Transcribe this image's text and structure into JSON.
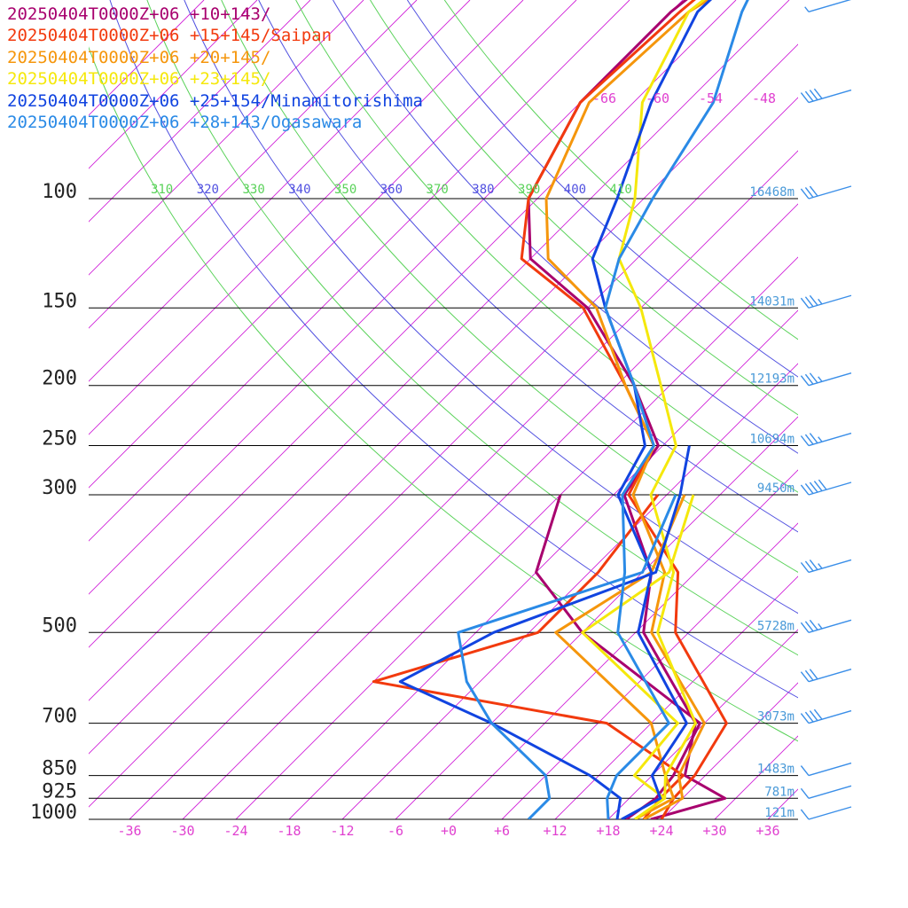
{
  "chart_data": {
    "type": "line",
    "title": "",
    "legend": [
      {
        "label": "20250404T0000Z+06 +10+143/",
        "color": "#a8006e"
      },
      {
        "label": "20250404T0000Z+06 +15+145/Saipan",
        "color": "#f23a0e"
      },
      {
        "label": "20250404T0000Z+06 +20+145/",
        "color": "#f5960c"
      },
      {
        "label": "20250404T0000Z+06 +23+145/",
        "color": "#f5e80c"
      },
      {
        "label": "20250404T0000Z+06 +25+154/Minamitorishima",
        "color": "#1144e0"
      },
      {
        "label": "20250404T0000Z+06 +28+143/Ogasawara",
        "color": "#2a8ae6"
      }
    ],
    "pressure_levels": [
      {
        "p": 100,
        "label": "100",
        "height": "16468m"
      },
      {
        "p": 150,
        "label": "150",
        "height": "14031m"
      },
      {
        "p": 200,
        "label": "200",
        "height": "12193m"
      },
      {
        "p": 250,
        "label": "250",
        "height": "10694m"
      },
      {
        "p": 300,
        "label": "300",
        "height": "9450m"
      },
      {
        "p": 500,
        "label": "500",
        "height": "5728m"
      },
      {
        "p": 700,
        "label": "700",
        "height": "3073m"
      },
      {
        "p": 850,
        "label": "850",
        "height": "1483m"
      },
      {
        "p": 925,
        "label": "925",
        "height": "781m"
      },
      {
        "p": 1000,
        "label": "1000",
        "height": "121m"
      }
    ],
    "x_tick_labels": [
      "-36",
      "-30",
      "-24",
      "-18",
      "-12",
      "-6",
      "+0",
      "+6",
      "+12",
      "+18",
      "+24",
      "+30",
      "+36"
    ],
    "x_tick_values": [
      -36,
      -30,
      -24,
      -18,
      -12,
      -6,
      0,
      6,
      12,
      18,
      24,
      30,
      36
    ],
    "isotherm_top_labels": [
      "-66",
      "-60",
      "-54",
      "-48"
    ],
    "isotherm_top_values": [
      -66,
      -60,
      -54,
      -48
    ],
    "theta_labels": [
      "310",
      "320",
      "330",
      "340",
      "350",
      "360",
      "370",
      "380",
      "390",
      "400",
      "410"
    ],
    "theta_values": [
      310,
      320,
      330,
      340,
      350,
      360,
      370,
      380,
      390,
      400,
      410
    ],
    "colors": {
      "level_label": "#222222",
      "height_label": "#4a9ad8",
      "temp_axis": "#e040d0",
      "isotherm": "#d020d8",
      "theta_green": "#5ad25a",
      "theta_blue": "#5050e0",
      "isobar": "#000000",
      "wind_barb": "#3a8ee8"
    },
    "series": [
      {
        "name": "20250404T0000Z+06 +10+143/",
        "color": "#a8006e",
        "temperature": [
          [
            1000,
            22.8
          ],
          [
            925,
            28.8
          ],
          [
            850,
            21.7
          ],
          [
            700,
            17
          ],
          [
            500,
            0.9
          ],
          [
            400,
            -5
          ],
          [
            300,
            -16.8
          ],
          [
            250,
            -18.5
          ],
          [
            200,
            -28
          ],
          [
            150,
            -42
          ],
          [
            125,
            -54
          ],
          [
            100,
            -61
          ],
          [
            70,
            -66
          ],
          [
            50,
            -66
          ],
          [
            30,
            -62
          ]
        ],
        "dewpoint": [
          [
            1000,
            20
          ],
          [
            925,
            21
          ],
          [
            850,
            20.4
          ],
          [
            700,
            17.5
          ],
          [
            500,
            -6
          ],
          [
            400,
            -18
          ],
          [
            300,
            -24
          ]
        ]
      },
      {
        "name": "20250404T0000Z+06 +15+145/Saipan",
        "color": "#f23a0e",
        "temperature": [
          [
            1000,
            24
          ],
          [
            925,
            23
          ],
          [
            850,
            22.8
          ],
          [
            700,
            20.5
          ],
          [
            500,
            4.5
          ],
          [
            400,
            -2
          ],
          [
            300,
            -16.3
          ],
          [
            250,
            -19
          ],
          [
            200,
            -29
          ],
          [
            150,
            -42.5
          ],
          [
            125,
            -55
          ],
          [
            100,
            -61
          ],
          [
            70,
            -66
          ],
          [
            50,
            -65
          ],
          [
            30,
            -62
          ]
        ],
        "dewpoint": [
          [
            1000,
            22
          ],
          [
            925,
            21.5
          ],
          [
            850,
            21.5
          ],
          [
            700,
            7
          ],
          [
            600,
            -24
          ],
          [
            500,
            -11
          ],
          [
            400,
            -11
          ],
          [
            300,
            -13
          ]
        ]
      },
      {
        "name": "20250404T0000Z+06 +20+145/",
        "color": "#f5960c",
        "temperature": [
          [
            1000,
            22
          ],
          [
            925,
            24
          ],
          [
            850,
            21
          ],
          [
            700,
            18
          ],
          [
            500,
            1.8
          ],
          [
            400,
            -3.5
          ],
          [
            300,
            -15.8
          ],
          [
            250,
            -19
          ],
          [
            200,
            -29
          ],
          [
            150,
            -41
          ],
          [
            125,
            -52
          ],
          [
            100,
            -59
          ],
          [
            70,
            -65
          ],
          [
            50,
            -64
          ],
          [
            30,
            -54
          ]
        ],
        "dewpoint": [
          [
            1000,
            21
          ],
          [
            925,
            23
          ],
          [
            850,
            19.5
          ],
          [
            700,
            12
          ],
          [
            500,
            -9
          ],
          [
            400,
            -5
          ],
          [
            300,
            -10
          ]
        ]
      },
      {
        "name": "20250404T0000Z+06 +23+145/",
        "color": "#f5e80c",
        "temperature": [
          [
            1000,
            21
          ],
          [
            925,
            22
          ],
          [
            850,
            19.5
          ],
          [
            700,
            17
          ],
          [
            500,
            2.5
          ],
          [
            400,
            -2.5
          ],
          [
            300,
            -13.8
          ],
          [
            250,
            -16.5
          ],
          [
            200,
            -25
          ],
          [
            150,
            -36
          ],
          [
            125,
            -44
          ],
          [
            100,
            -49
          ],
          [
            70,
            -59
          ],
          [
            50,
            -64
          ],
          [
            30,
            -60
          ]
        ],
        "dewpoint": [
          [
            1000,
            21
          ],
          [
            925,
            22
          ],
          [
            850,
            16
          ],
          [
            700,
            15
          ],
          [
            500,
            -6
          ],
          [
            400,
            -3
          ],
          [
            300,
            -9
          ]
        ]
      },
      {
        "name": "20250404T0000Z+06 +25+154/Minamitorishima",
        "color": "#1144e0",
        "temperature": [
          [
            1000,
            19.5
          ],
          [
            925,
            21.5
          ],
          [
            850,
            18
          ],
          [
            700,
            16
          ],
          [
            500,
            0.3
          ],
          [
            400,
            -5
          ],
          [
            300,
            -17.5
          ],
          [
            250,
            -20
          ],
          [
            200,
            -28
          ],
          [
            150,
            -40
          ],
          [
            125,
            -47
          ],
          [
            100,
            -51
          ],
          [
            70,
            -58
          ],
          [
            50,
            -63
          ],
          [
            30,
            -62
          ]
        ],
        "dewpoint": [
          [
            1000,
            19
          ],
          [
            925,
            17
          ],
          [
            850,
            11
          ],
          [
            700,
            -6
          ],
          [
            600,
            -21
          ],
          [
            500,
            -16
          ],
          [
            400,
            -4.5
          ],
          [
            300,
            -10.5
          ],
          [
            250,
            -15
          ]
        ]
      },
      {
        "name": "20250404T0000Z+06 +28+143/Ogasawara",
        "color": "#2a8ae6",
        "temperature": [
          [
            1000,
            18
          ],
          [
            925,
            15.5
          ],
          [
            850,
            14
          ],
          [
            700,
            14
          ],
          [
            500,
            -2
          ],
          [
            400,
            -8
          ],
          [
            300,
            -17
          ],
          [
            250,
            -19
          ],
          [
            200,
            -28
          ],
          [
            150,
            -40
          ],
          [
            125,
            -44
          ],
          [
            100,
            -47
          ],
          [
            70,
            -51
          ],
          [
            50,
            -58
          ],
          [
            30,
            -66
          ]
        ],
        "dewpoint": [
          [
            1000,
            9
          ],
          [
            925,
            9
          ],
          [
            850,
            6
          ],
          [
            700,
            -6
          ],
          [
            600,
            -13.5
          ],
          [
            500,
            -20
          ],
          [
            400,
            -6
          ],
          [
            300,
            -11
          ]
        ]
      }
    ],
    "wind_barbs": [
      {
        "p": 1000,
        "speed_kt": 10
      },
      {
        "p": 925,
        "speed_kt": 10
      },
      {
        "p": 850,
        "speed_kt": 10
      },
      {
        "p": 700,
        "speed_kt": 40
      },
      {
        "p": 600,
        "speed_kt": 30
      },
      {
        "p": 500,
        "speed_kt": 35
      },
      {
        "p": 400,
        "speed_kt": 35
      },
      {
        "p": 300,
        "speed_kt": 50
      },
      {
        "p": 250,
        "speed_kt": 35
      },
      {
        "p": 200,
        "speed_kt": 35
      },
      {
        "p": 150,
        "speed_kt": 35
      },
      {
        "p": 100,
        "speed_kt": 30
      },
      {
        "p": 70,
        "speed_kt": 40
      },
      {
        "p": 50,
        "speed_kt": 5
      }
    ],
    "grid": true,
    "legend_position": "top-left"
  }
}
